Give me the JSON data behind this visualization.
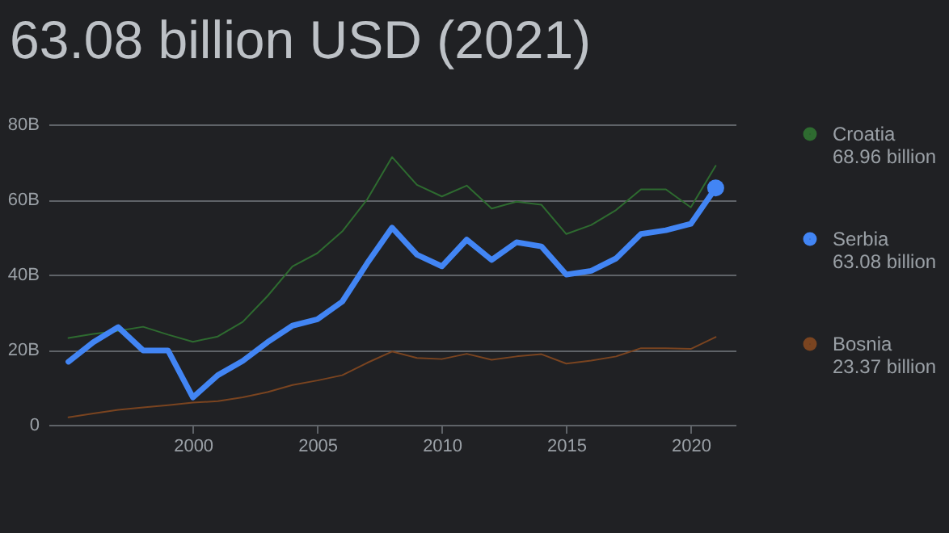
{
  "chart_data": {
    "type": "line",
    "title": "63.08 billion USD (2021)",
    "x": [
      1995,
      1996,
      1997,
      1998,
      1999,
      2000,
      2001,
      2002,
      2003,
      2004,
      2005,
      2006,
      2007,
      2008,
      2009,
      2010,
      2011,
      2012,
      2013,
      2014,
      2015,
      2016,
      2017,
      2018,
      2019,
      2020,
      2021
    ],
    "series": [
      {
        "name": "Croatia",
        "color": "#2e6b30",
        "values": [
          23.1,
          24.2,
          25,
          26.1,
          24,
          22.1,
          23.5,
          27.4,
          34.3,
          42.2,
          45.7,
          51.5,
          60,
          71.3,
          63.9,
          60.8,
          63.7,
          57.6,
          59.4,
          58.6,
          50.8,
          53.2,
          57.2,
          62.7,
          62.7,
          57.9,
          68.96
        ]
      },
      {
        "name": "Serbia",
        "color": "#4285f4",
        "values": [
          16.8,
          22,
          26,
          19.8,
          19.8,
          7.3,
          13.2,
          17,
          22,
          26.4,
          28.1,
          32.8,
          43,
          52.5,
          45.3,
          42.2,
          49.3,
          43.9,
          48.6,
          47.5,
          40,
          41,
          44.3,
          50.8,
          51.8,
          53.5,
          63.08
        ]
      },
      {
        "name": "Bosnia",
        "color": "#7a4420",
        "values": [
          2,
          3,
          4,
          4.6,
          5.2,
          5.9,
          6.3,
          7.3,
          8.7,
          10.6,
          11.8,
          13.2,
          16.5,
          19.5,
          17.8,
          17.5,
          18.9,
          17.3,
          18.2,
          18.8,
          16.3,
          17.1,
          18.2,
          20.4,
          20.4,
          20.2,
          23.37
        ]
      },
      {
        "type": "scatter",
        "color": "#4285f4",
        "x": [
          2021
        ],
        "values": [
          63.08
        ]
      }
    ],
    "annotations": [
      "68.96 billion",
      "63.08 billion",
      "23.37 billion"
    ],
    "xlim": [
      1994.2,
      2021.8
    ],
    "xticks": [
      2000,
      2005,
      2010,
      2015,
      2020
    ],
    "ylim": [
      0,
      80
    ],
    "yticks": [
      0,
      {
        "value": 20,
        "label": "20B"
      },
      {
        "value": 40,
        "label": "40B"
      },
      {
        "value": 60,
        "label": "60B"
      },
      {
        "value": 80,
        "label": "80B"
      }
    ],
    "grid": "y",
    "legend": "right"
  }
}
